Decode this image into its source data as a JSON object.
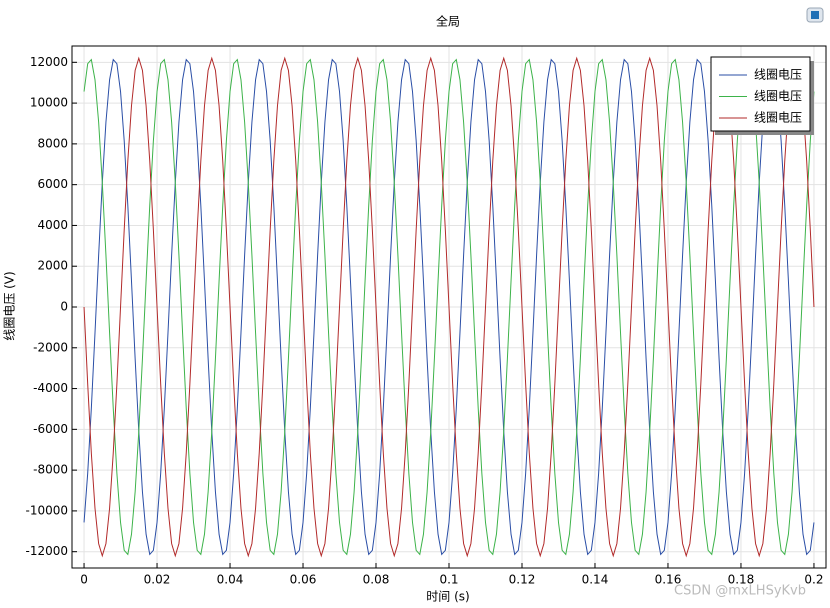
{
  "chart_data": {
    "type": "line",
    "title": "全局",
    "xlabel": "时间 (s)",
    "ylabel": "线圈电压 (V)",
    "x": [
      0,
      0.001,
      0.002,
      0.003,
      0.004,
      0.005,
      0.006,
      0.007,
      0.008,
      0.009,
      0.01,
      0.011,
      0.012,
      0.013,
      0.014,
      0.015,
      0.016,
      0.017,
      0.018,
      0.019,
      0.02,
      0.021,
      0.022,
      0.023,
      0.024,
      0.025,
      0.026,
      0.027,
      0.028,
      0.029,
      0.03,
      0.031,
      0.032,
      0.033,
      0.034,
      0.035,
      0.036,
      0.037,
      0.038,
      0.039,
      0.04,
      0.041,
      0.042,
      0.043,
      0.044,
      0.045,
      0.046,
      0.047,
      0.048,
      0.049,
      0.05,
      0.051,
      0.052,
      0.053,
      0.054,
      0.055,
      0.056,
      0.057,
      0.058,
      0.059,
      0.06,
      0.061,
      0.062,
      0.063,
      0.064,
      0.065,
      0.066,
      0.067,
      0.068,
      0.069,
      0.07,
      0.071,
      0.072,
      0.073,
      0.074,
      0.075,
      0.076,
      0.077,
      0.078,
      0.079,
      0.08,
      0.081,
      0.082,
      0.083,
      0.084,
      0.085,
      0.086,
      0.087,
      0.088,
      0.089,
      0.09,
      0.091,
      0.092,
      0.093,
      0.094,
      0.095,
      0.096,
      0.097,
      0.098,
      0.099,
      0.1,
      0.101,
      0.102,
      0.103,
      0.104,
      0.105,
      0.106,
      0.107,
      0.108,
      0.109,
      0.11,
      0.111,
      0.112,
      0.113,
      0.114,
      0.115,
      0.116,
      0.117,
      0.118,
      0.119,
      0.12,
      0.121,
      0.122,
      0.123,
      0.124,
      0.125,
      0.126,
      0.127,
      0.128,
      0.129,
      0.13,
      0.131,
      0.132,
      0.133,
      0.134,
      0.135,
      0.136,
      0.137,
      0.138,
      0.139,
      0.14,
      0.141,
      0.142,
      0.143,
      0.144,
      0.145,
      0.146,
      0.147,
      0.148,
      0.149,
      0.15,
      0.151,
      0.152,
      0.153,
      0.154,
      0.155,
      0.156,
      0.157,
      0.158,
      0.159,
      0.16,
      0.161,
      0.162,
      0.163,
      0.164,
      0.165,
      0.166,
      0.167,
      0.168,
      0.169,
      0.17,
      0.171,
      0.172,
      0.173,
      0.174,
      0.175,
      0.176,
      0.177,
      0.178,
      0.179,
      0.18,
      0.181,
      0.182,
      0.183,
      0.184,
      0.185,
      0.186,
      0.187,
      0.188,
      0.189,
      0.19,
      0.191,
      0.192,
      0.193,
      0.194,
      0.195,
      0.196,
      0.197,
      0.198,
      0.199,
      0.2
    ],
    "series": [
      {
        "name": "线圈电压",
        "color": "#2a4ea6",
        "values": [
          -10565,
          -8163,
          -4962,
          -1275,
          2536,
          6100,
          9066,
          11145,
          12133,
          11933,
          10565,
          8163,
          4962,
          1275,
          -2536,
          -6100,
          -9066,
          -11145,
          -12133,
          -11933,
          -10565,
          -8163,
          -4962,
          -1275,
          2536,
          6100,
          9066,
          11145,
          12133,
          11933,
          10565,
          8163,
          4962,
          1275,
          -2536,
          -6100,
          -9066,
          -11145,
          -12133,
          -11933,
          -10565,
          -8163,
          -4962,
          -1275,
          2536,
          6100,
          9066,
          11145,
          12133,
          11933,
          10565,
          8163,
          4962,
          1275,
          -2536,
          -6100,
          -9066,
          -11145,
          -12133,
          -11933,
          -10565,
          -8163,
          -4962,
          -1275,
          2536,
          6100,
          9066,
          11145,
          12133,
          11933,
          10565,
          8163,
          4962,
          1275,
          -2536,
          -6100,
          -9066,
          -11145,
          -12133,
          -11933,
          -10565,
          -8163,
          -4962,
          -1275,
          2536,
          6100,
          9066,
          11145,
          12133,
          11933,
          10565,
          8163,
          4962,
          1275,
          -2536,
          -6100,
          -9066,
          -11145,
          -12133,
          -11933,
          -10565,
          -8163,
          -4962,
          -1275,
          2536,
          6100,
          9066,
          11145,
          12133,
          11933,
          10565,
          8163,
          4962,
          1275,
          -2536,
          -6100,
          -9066,
          -11145,
          -12133,
          -11933,
          -10565,
          -8163,
          -4962,
          -1275,
          2536,
          6100,
          9066,
          11145,
          12133,
          11933,
          10565,
          8163,
          4962,
          1275,
          -2536,
          -6100,
          -9066,
          -11145,
          -12133,
          -11933,
          -10565,
          -8163,
          -4962,
          -1275,
          2536,
          6100,
          9066,
          11145,
          12133,
          11933,
          10565,
          8163,
          4962,
          1275,
          -2536,
          -6100,
          -9066,
          -11145,
          -12133,
          -11933,
          -10565,
          -8163,
          -4962,
          -1275,
          2536,
          6100,
          9066,
          11145,
          12133,
          11933,
          10565,
          8163,
          4962,
          1275,
          -2536,
          -6100,
          -9066,
          -11145,
          -12133,
          -11933,
          -10565,
          -8163,
          -4962,
          -1275,
          2536,
          6100,
          9066,
          11145,
          12133,
          11933,
          10565,
          8163,
          4962,
          1275,
          -2536,
          -6100,
          -9066,
          -11145,
          -12133,
          -11933,
          -10565
        ]
      },
      {
        "name": "线圈电压",
        "color": "#3db34a",
        "values": [
          10565,
          11933,
          12133,
          11145,
          9066,
          6100,
          2536,
          -1275,
          -4962,
          -8163,
          -10565,
          -11933,
          -12133,
          -11145,
          -9066,
          -6100,
          -2536,
          1275,
          4962,
          8163,
          10565,
          11933,
          12133,
          11145,
          9066,
          6100,
          2536,
          -1275,
          -4962,
          -8163,
          -10565,
          -11933,
          -12133,
          -11145,
          -9066,
          -6100,
          -2536,
          1275,
          4962,
          8163,
          10565,
          11933,
          12133,
          11145,
          9066,
          6100,
          2536,
          -1275,
          -4962,
          -8163,
          -10565,
          -11933,
          -12133,
          -11145,
          -9066,
          -6100,
          -2536,
          1275,
          4962,
          8163,
          10565,
          11933,
          12133,
          11145,
          9066,
          6100,
          2536,
          -1275,
          -4962,
          -8163,
          -10565,
          -11933,
          -12133,
          -11145,
          -9066,
          -6100,
          -2536,
          1275,
          4962,
          8163,
          10565,
          11933,
          12133,
          11145,
          9066,
          6100,
          2536,
          -1275,
          -4962,
          -8163,
          -10565,
          -11933,
          -12133,
          -11145,
          -9066,
          -6100,
          -2536,
          1275,
          4962,
          8163,
          10565,
          11933,
          12133,
          11145,
          9066,
          6100,
          2536,
          -1275,
          -4962,
          -8163,
          -10565,
          -11933,
          -12133,
          -11145,
          -9066,
          -6100,
          -2536,
          1275,
          4962,
          8163,
          10565,
          11933,
          12133,
          11145,
          9066,
          6100,
          2536,
          -1275,
          -4962,
          -8163,
          -10565,
          -11933,
          -12133,
          -11145,
          -9066,
          -6100,
          -2536,
          1275,
          4962,
          8163,
          10565,
          11933,
          12133,
          11145,
          9066,
          6100,
          2536,
          -1275,
          -4962,
          -8163,
          -10565,
          -11933,
          -12133,
          -11145,
          -9066,
          -6100,
          -2536,
          1275,
          4962,
          8163,
          10565,
          11933,
          12133,
          11145,
          9066,
          6100,
          2536,
          -1275,
          -4962,
          -8163,
          -10565,
          -11933,
          -12133,
          -11145,
          -9066,
          -6100,
          -2536,
          1275,
          4962,
          8163,
          10565,
          11933,
          12133,
          11145,
          9066,
          6100,
          2536,
          -1275,
          -4962,
          -8163,
          -10565,
          -11933,
          -12133,
          -11145,
          -9066,
          -6100,
          -2536,
          1275,
          4962,
          8163,
          10565
        ]
      },
      {
        "name": "线圈电压",
        "color": "#b22a2a",
        "values": [
          0,
          -3770,
          -7171,
          -9870,
          -11603,
          -12200,
          -11603,
          -9870,
          -7171,
          -3770,
          0,
          3770,
          7171,
          9870,
          11603,
          12200,
          11603,
          9870,
          7171,
          3770,
          0,
          -3770,
          -7171,
          -9870,
          -11603,
          -12200,
          -11603,
          -9870,
          -7171,
          -3770,
          0,
          3770,
          7171,
          9870,
          11603,
          12200,
          11603,
          9870,
          7171,
          3770,
          0,
          -3770,
          -7171,
          -9870,
          -11603,
          -12200,
          -11603,
          -9870,
          -7171,
          -3770,
          0,
          3770,
          7171,
          9870,
          11603,
          12200,
          11603,
          9870,
          7171,
          3770,
          0,
          -3770,
          -7171,
          -9870,
          -11603,
          -12200,
          -11603,
          -9870,
          -7171,
          -3770,
          0,
          3770,
          7171,
          9870,
          11603,
          12200,
          11603,
          9870,
          7171,
          3770,
          0,
          -3770,
          -7171,
          -9870,
          -11603,
          -12200,
          -11603,
          -9870,
          -7171,
          -3770,
          0,
          3770,
          7171,
          9870,
          11603,
          12200,
          11603,
          9870,
          7171,
          3770,
          0,
          -3770,
          -7171,
          -9870,
          -11603,
          -12200,
          -11603,
          -9870,
          -7171,
          -3770,
          0,
          3770,
          7171,
          9870,
          11603,
          12200,
          11603,
          9870,
          7171,
          3770,
          0,
          -3770,
          -7171,
          -9870,
          -11603,
          -12200,
          -11603,
          -9870,
          -7171,
          -3770,
          0,
          3770,
          7171,
          9870,
          11603,
          12200,
          11603,
          9870,
          7171,
          3770,
          0,
          -3770,
          -7171,
          -9870,
          -11603,
          -12200,
          -11603,
          -9870,
          -7171,
          -3770,
          0,
          3770,
          7171,
          9870,
          11603,
          12200,
          11603,
          9870,
          7171,
          3770,
          0,
          -3770,
          -7171,
          -9870,
          -11603,
          -12200,
          -11603,
          -9870,
          -7171,
          -3770,
          0,
          3770,
          7171,
          9870,
          11603,
          12200,
          11603,
          9870,
          7171,
          3770,
          0,
          -3770,
          -7171,
          -9870,
          -11603,
          -12200,
          -11603,
          -9870,
          -7171,
          -3770,
          0,
          3770,
          7171,
          9870,
          11603,
          12200,
          11603,
          9870,
          7171,
          3770,
          0
        ]
      }
    ],
    "xlim": [
      -0.0033,
      0.2033
    ],
    "xticks": [
      0,
      0.02,
      0.04,
      0.06,
      0.08,
      0.1,
      0.12,
      0.14,
      0.16,
      0.18,
      0.2
    ],
    "ylim": [
      -12800,
      12800
    ],
    "yticks": [
      -12000,
      -10000,
      -8000,
      -6000,
      -4000,
      -2000,
      0,
      2000,
      4000,
      6000,
      8000,
      10000,
      12000
    ],
    "grid": true,
    "legend": "upper right",
    "watermark": "CSDN @mxLHSyKvb"
  }
}
